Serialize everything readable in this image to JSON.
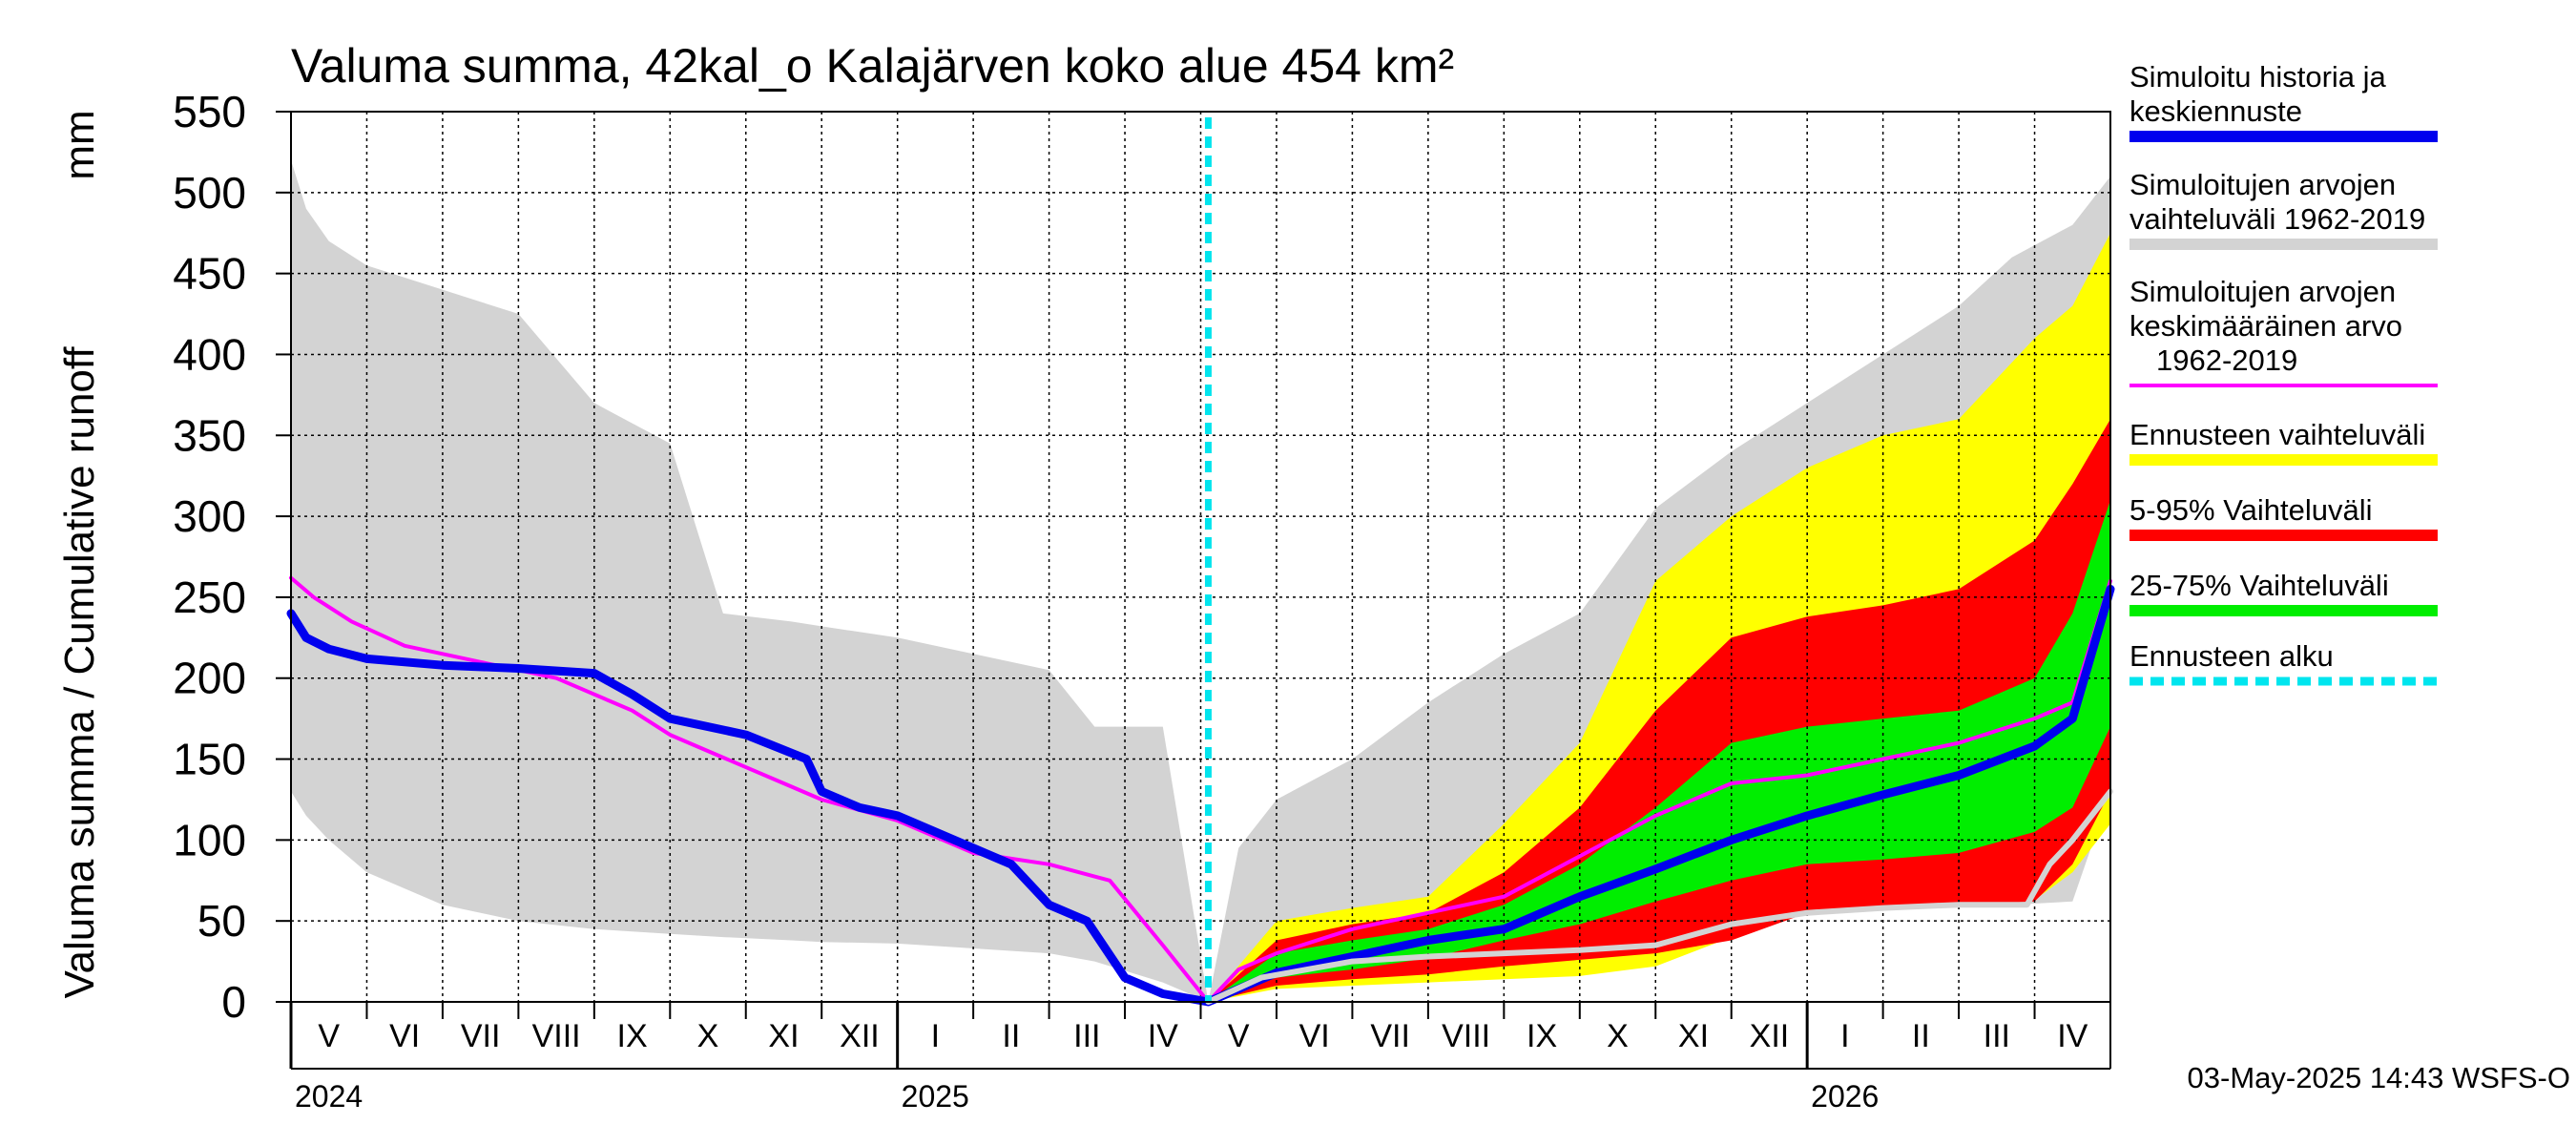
{
  "chart_data": {
    "type": "area",
    "title": "Valuma summa, 42kal_o Kalajärven koko alue 454 km²",
    "ylabel": "Valuma summa / Cumulative runoff",
    "yunit": "mm",
    "ylim": [
      0,
      550
    ],
    "yticks": [
      0,
      50,
      100,
      150,
      200,
      250,
      300,
      350,
      400,
      450,
      500,
      550
    ],
    "grid": true,
    "x_range_months": [
      0,
      24
    ],
    "x_note": "x values are months since 2024-05-01",
    "forecast_start_month": 12.1,
    "months": [
      {
        "label": "V",
        "x": 0
      },
      {
        "label": "VI",
        "x": 1
      },
      {
        "label": "VII",
        "x": 2
      },
      {
        "label": "VIII",
        "x": 3
      },
      {
        "label": "IX",
        "x": 4
      },
      {
        "label": "X",
        "x": 5
      },
      {
        "label": "XI",
        "x": 6
      },
      {
        "label": "XII",
        "x": 7
      },
      {
        "label": "I",
        "x": 8
      },
      {
        "label": "II",
        "x": 9
      },
      {
        "label": "III",
        "x": 10
      },
      {
        "label": "IV",
        "x": 11
      },
      {
        "label": "V",
        "x": 12
      },
      {
        "label": "VI",
        "x": 13
      },
      {
        "label": "VII",
        "x": 14
      },
      {
        "label": "VIII",
        "x": 15
      },
      {
        "label": "IX",
        "x": 16
      },
      {
        "label": "X",
        "x": 17
      },
      {
        "label": "XI",
        "x": 18
      },
      {
        "label": "XII",
        "x": 19
      },
      {
        "label": "I",
        "x": 20
      },
      {
        "label": "II",
        "x": 21
      },
      {
        "label": "III",
        "x": 22
      },
      {
        "label": "IV",
        "x": 23
      }
    ],
    "years": [
      {
        "label": "2024",
        "x": 0
      },
      {
        "label": "2025",
        "x": 8
      },
      {
        "label": "2026",
        "x": 20
      }
    ],
    "series": [
      {
        "name": "Simuloitujen arvojen vaihteluväli 1962-2019",
        "kind": "band",
        "color": "#d3d3d3",
        "x": [
          0,
          0.2,
          0.5,
          1,
          2,
          3,
          4,
          5,
          5.7,
          6.6,
          7,
          8,
          9,
          10,
          10.6,
          11.5,
          12.1,
          12.5,
          13,
          14,
          15,
          16,
          17,
          18,
          19,
          20,
          21,
          22,
          22.7,
          23.5,
          24
        ],
        "upper": [
          520,
          490,
          470,
          455,
          440,
          425,
          370,
          345,
          240,
          235,
          232,
          225,
          215,
          205,
          170,
          170,
          0,
          95,
          125,
          150,
          185,
          215,
          240,
          305,
          340,
          370,
          400,
          430,
          460,
          480,
          510
        ],
        "lower": [
          130,
          115,
          100,
          80,
          60,
          50,
          45,
          42,
          40,
          38,
          37,
          36,
          33,
          30,
          25,
          12,
          0,
          10,
          15,
          20,
          25,
          28,
          31,
          35,
          48,
          55,
          57,
          60,
          60,
          62,
          130
        ]
      },
      {
        "name": "Ennusteen vaihteluväli",
        "kind": "band",
        "color": "#ffff00",
        "x": [
          12.1,
          13,
          14,
          15,
          16,
          17,
          18,
          19,
          20,
          21,
          22,
          23,
          23.5,
          24
        ],
        "upper": [
          0,
          50,
          58,
          65,
          110,
          160,
          260,
          300,
          330,
          350,
          360,
          410,
          430,
          475
        ],
        "lower": [
          0,
          8,
          10,
          12,
          14,
          16,
          22,
          40,
          55,
          58,
          60,
          63,
          80,
          110
        ]
      },
      {
        "name": "5-95% Vaihteluväli",
        "kind": "band",
        "color": "#ff0000",
        "x": [
          12.1,
          13,
          14,
          15,
          16,
          17,
          18,
          19,
          20,
          21,
          22,
          23,
          23.5,
          24
        ],
        "upper": [
          0,
          38,
          48,
          55,
          80,
          120,
          180,
          225,
          238,
          245,
          255,
          285,
          320,
          360
        ],
        "lower": [
          0,
          10,
          14,
          17,
          22,
          26,
          30,
          38,
          55,
          58,
          60,
          62,
          85,
          130
        ]
      },
      {
        "name": "25-75% Vaihteluväli",
        "kind": "band",
        "color": "#00ee00",
        "x": [
          12.1,
          13,
          14,
          15,
          16,
          17,
          18,
          19,
          20,
          21,
          22,
          23,
          23.5,
          24
        ],
        "upper": [
          0,
          30,
          38,
          45,
          60,
          85,
          120,
          160,
          170,
          175,
          180,
          200,
          240,
          310
        ],
        "lower": [
          0,
          15,
          20,
          27,
          38,
          48,
          62,
          75,
          85,
          88,
          92,
          105,
          120,
          170
        ]
      },
      {
        "name": "Simuloitujen arvojen keskimääräinen arvo 1962-2019",
        "kind": "line",
        "color": "#ff00ff",
        "width": 4,
        "x": [
          0,
          0.3,
          0.8,
          1.5,
          2.5,
          3.5,
          4.5,
          5,
          5.5,
          6.5,
          7,
          8,
          9,
          10,
          10.8,
          11.5,
          12.1,
          12.5,
          13,
          14,
          15,
          16,
          17,
          18,
          19,
          20,
          21,
          22,
          23,
          23.5,
          24
        ],
        "y": [
          262,
          250,
          235,
          220,
          210,
          200,
          180,
          165,
          155,
          135,
          125,
          112,
          92,
          85,
          75,
          35,
          0,
          20,
          30,
          45,
          55,
          65,
          90,
          115,
          135,
          140,
          150,
          160,
          175,
          185,
          260
        ]
      },
      {
        "name": "Simuloitu historia ja keskiennuste",
        "kind": "line",
        "color": "#0000ee",
        "width": 9,
        "x": [
          0,
          0.2,
          0.5,
          1,
          2,
          3,
          4,
          4.5,
          5,
          6,
          6.8,
          7,
          7.5,
          8,
          9,
          9.5,
          10,
          10.5,
          11,
          11.5,
          12.1,
          13,
          14,
          15,
          16,
          17,
          18,
          19,
          20,
          21,
          22,
          23,
          23.5,
          24
        ],
        "y": [
          240,
          225,
          218,
          212,
          208,
          206,
          203,
          190,
          175,
          165,
          150,
          130,
          120,
          115,
          95,
          85,
          60,
          50,
          15,
          5,
          0,
          18,
          28,
          38,
          45,
          65,
          82,
          100,
          115,
          128,
          140,
          158,
          175,
          255
        ]
      },
      {
        "name": "Simuloitujen arvojen vaihteluväli 1962-2019 (ennustejakso)",
        "kind": "line",
        "color": "#d3d3d3",
        "width": 6,
        "x": [
          12.1,
          12.8,
          14,
          15,
          16,
          17,
          18,
          19,
          20,
          21,
          22,
          22.9,
          23.2,
          23.5,
          24
        ],
        "y": [
          0,
          15,
          25,
          28,
          30,
          32,
          35,
          48,
          55,
          58,
          60,
          60,
          85,
          100,
          130
        ]
      }
    ],
    "legend": [
      {
        "label": "Simuloitu historia ja keskiennuste",
        "color": "#0000ee",
        "style": "solid"
      },
      {
        "label": "Simuloitujen arvojen vaihteluväli 1962-2019",
        "color": "#d3d3d3",
        "style": "solid"
      },
      {
        "label": "Simuloitujen arvojen keskimääräinen arvo 1962-2019",
        "color": "#ff00ff",
        "style": "thin"
      },
      {
        "label": "Ennusteen vaihteluväli",
        "color": "#ffff00",
        "style": "solid"
      },
      {
        "label": "5-95% Vaihteluväli",
        "color": "#ff0000",
        "style": "solid"
      },
      {
        "label": "25-75% Vaihteluväli",
        "color": "#00ee00",
        "style": "solid"
      },
      {
        "label": "Ennusteen alku",
        "color": "#00e5ee",
        "style": "dashed"
      }
    ],
    "legend_lines": [
      [
        "Simuloitu historia ja",
        "keskiennuste"
      ],
      [
        "Simuloitujen arvojen",
        "vaihteluväli 1962-2019"
      ],
      [
        "Simuloitujen arvojen",
        "keskimääräinen arvo",
        "1962-2019"
      ],
      [
        "Ennusteen vaihteluväli"
      ],
      [
        "5-95% Vaihteluväli"
      ],
      [
        "25-75% Vaihteluväli"
      ],
      [
        "Ennusteen alku"
      ]
    ],
    "footer": "03-May-2025 14:43 WSFS-O"
  }
}
